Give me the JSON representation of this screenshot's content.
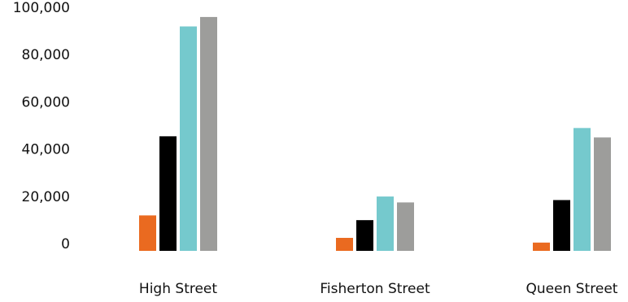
{
  "chart_data": {
    "type": "bar",
    "title": "",
    "xlabel": "",
    "ylabel": "",
    "categories": [
      "High Street",
      "Fisherton Street",
      "Queen Street"
    ],
    "series": [
      {
        "color": "#ea6a20",
        "values": [
          15000,
          5500,
          3500
        ]
      },
      {
        "color": "#000000",
        "values": [
          48500,
          13000,
          21500
        ]
      },
      {
        "color": "#75c9cd",
        "values": [
          95000,
          23000,
          52000
        ]
      },
      {
        "color": "#9d9d9b",
        "values": [
          99000,
          20500,
          48000
        ]
      }
    ],
    "ylim": [
      0,
      100000
    ],
    "yticks": [
      0,
      20000,
      40000,
      60000,
      80000,
      100000
    ],
    "ytick_labels": [
      "0",
      "20,000",
      "40,000",
      "60,000",
      "80,000",
      "100,000"
    ],
    "grid": false,
    "legend": "none"
  }
}
